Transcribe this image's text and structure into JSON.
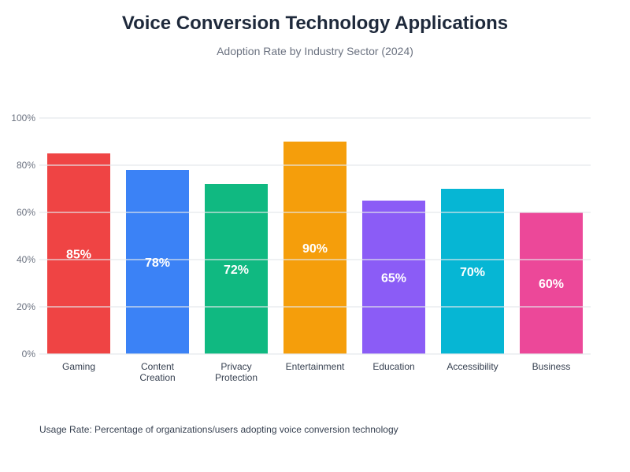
{
  "chart_data": {
    "type": "bar",
    "title": "Voice Conversion Technology Applications",
    "subtitle": "Adoption Rate by Industry Sector (2024)",
    "xlabel": "",
    "ylabel": "",
    "ylim": [
      0,
      100
    ],
    "yticks": [
      0,
      20,
      40,
      60,
      80,
      100
    ],
    "ytick_suffix": "%",
    "grid": true,
    "legend": "none",
    "categories": [
      [
        "Gaming"
      ],
      [
        "Content",
        "Creation"
      ],
      [
        "Privacy",
        "Protection"
      ],
      [
        "Entertainment"
      ],
      [
        "Education"
      ],
      [
        "Accessibility"
      ],
      [
        "Business"
      ]
    ],
    "values": [
      85,
      78,
      72,
      90,
      65,
      70,
      60
    ],
    "value_labels": [
      "85%",
      "78%",
      "72%",
      "90%",
      "65%",
      "70%",
      "60%"
    ],
    "colors": [
      "#ef4444",
      "#3b82f6",
      "#10b981",
      "#f59e0b",
      "#8b5cf6",
      "#06b6d4",
      "#ec4899"
    ],
    "footnote": "Usage Rate: Percentage of organizations/users adopting voice conversion technology"
  }
}
